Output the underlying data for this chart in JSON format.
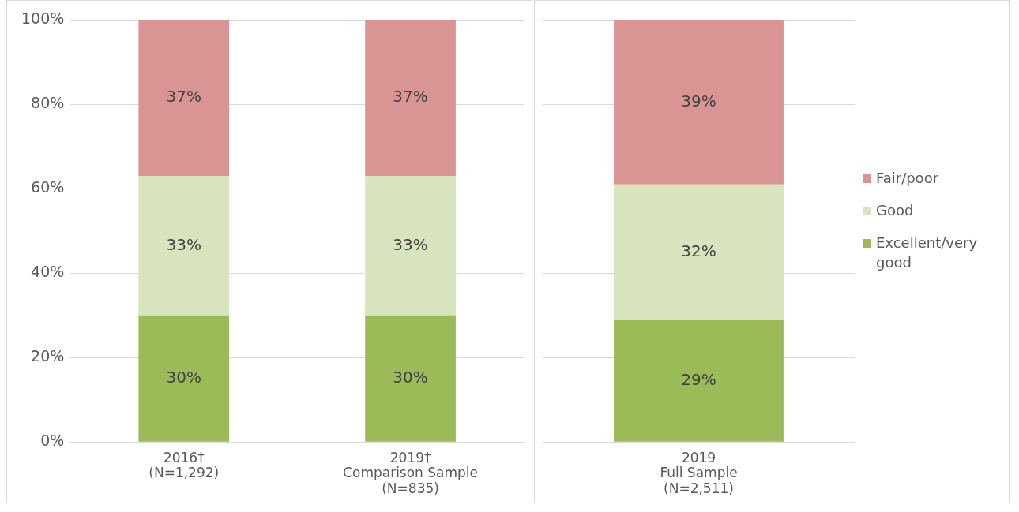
{
  "chart_data": [
    {
      "type": "bar",
      "stacked": true,
      "categories": [
        "2016†\n(N=1,292)",
        "2019†\nComparison Sample\n(N=835)"
      ],
      "ylim": [
        0,
        100
      ],
      "yticks": [
        {
          "value": 0,
          "label": "0%"
        },
        {
          "value": 20,
          "label": "20%"
        },
        {
          "value": 40,
          "label": "40%"
        },
        {
          "value": 60,
          "label": "60%"
        },
        {
          "value": 80,
          "label": "80%"
        },
        {
          "value": 100,
          "label": "100%"
        }
      ],
      "grid": "y",
      "legend": false,
      "series": [
        {
          "color": "#9bbb59",
          "values": [
            30,
            30
          ],
          "value_labels": [
            "30%",
            "30%"
          ]
        },
        {
          "color": "#d7e4bd",
          "values": [
            33,
            33
          ],
          "value_labels": [
            "33%",
            "33%"
          ]
        },
        {
          "color": "#d99594",
          "values": [
            37,
            37
          ],
          "value_labels": [
            "37%",
            "37%"
          ]
        }
      ]
    },
    {
      "type": "bar",
      "stacked": true,
      "categories": [
        "2019\nFull Sample\n(N=2,511)"
      ],
      "ylim": [
        0,
        100
      ],
      "yticks": [
        0,
        20,
        40,
        60,
        80,
        100
      ],
      "tick_labels": "x",
      "grid": "y",
      "legend": "right",
      "series": [
        {
          "name": "Excellent/very good",
          "color": "#9bbb59",
          "values": [
            29
          ],
          "value_labels": [
            "29%"
          ]
        },
        {
          "name": "Good",
          "color": "#d7e4bd",
          "values": [
            32
          ],
          "value_labels": [
            "32%"
          ]
        },
        {
          "name": "Fair/poor",
          "color": "#d99594",
          "values": [
            39
          ],
          "value_labels": [
            "39%"
          ]
        }
      ]
    }
  ]
}
